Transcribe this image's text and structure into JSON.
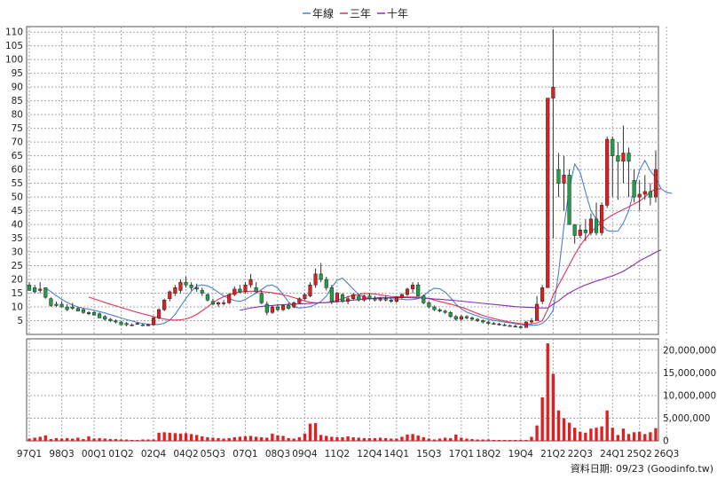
{
  "chart_data": {
    "type": "candlestick",
    "price_axis": {
      "range": [
        0,
        112
      ],
      "ticks": [
        5,
        10,
        15,
        20,
        25,
        30,
        35,
        40,
        45,
        50,
        55,
        60,
        65,
        70,
        75,
        80,
        85,
        90,
        95,
        100,
        105,
        110
      ],
      "tick_labels": [
        "5",
        "10",
        "15",
        "20",
        "25",
        "30",
        "35",
        "40",
        "45",
        "50",
        "55",
        "60",
        "65",
        "70",
        "75",
        "80",
        "85",
        "90",
        "95",
        "100",
        "105",
        "110"
      ]
    },
    "volume_axis": {
      "range": [
        0,
        22500000
      ],
      "ticks": [
        5000000,
        10000000,
        15000000,
        20000000
      ],
      "tick_labels": [
        "5,000,000",
        "10,000,000",
        "15,000,000",
        "20,000,000"
      ]
    },
    "x_axis": {
      "first_quarter": "97Q1",
      "last_quarter": "26Q3",
      "tick_labels": [
        "97Q1",
        "98Q3",
        "00Q1",
        "01Q2",
        "02Q4",
        "04Q2",
        "05Q3",
        "07Q1",
        "08Q3",
        "09Q4",
        "11Q2",
        "12Q4",
        "14Q1",
        "15Q3",
        "17Q1",
        "18Q2",
        "19Q4",
        "21Q2",
        "22Q3",
        "24Q1",
        "25Q2",
        "26Q3"
      ],
      "tick_positions": [
        0,
        6,
        12,
        17,
        23,
        29,
        34,
        40,
        46,
        51,
        57,
        63,
        68,
        74,
        80,
        85,
        91,
        97,
        102,
        108,
        113,
        118
      ]
    },
    "legend": {
      "placement": "top-center",
      "entries": [
        {
          "name": "年線",
          "color": "#4a7fd4"
        },
        {
          "name": "三年",
          "color": "#e0325a"
        },
        {
          "name": "十年",
          "color": "#8a2ab8"
        }
      ]
    },
    "grid": true,
    "footer_text": "資料日期: 09/23  (Goodinfo.tw)",
    "colors": {
      "up": "#e02020",
      "down": "#1fa048",
      "wick": "#333333",
      "volume": "#e02020",
      "grid": "#a8a8a8"
    },
    "candles": [
      [
        18,
        19,
        16,
        16
      ],
      [
        17,
        18,
        15,
        15.5
      ],
      [
        16,
        19,
        15,
        16.5
      ],
      [
        17,
        17,
        13,
        13.5
      ],
      [
        13,
        13.5,
        10,
        10.5
      ],
      [
        11,
        12,
        10,
        10.5
      ],
      [
        11,
        12,
        10,
        10
      ],
      [
        10,
        11,
        8.5,
        9
      ],
      [
        10,
        11.5,
        9,
        9.5
      ],
      [
        9.5,
        10,
        8.5,
        8.5
      ],
      [
        9,
        9.5,
        7.5,
        8
      ],
      [
        8,
        8.5,
        7,
        7.5
      ],
      [
        8,
        8.5,
        7,
        7
      ],
      [
        7.5,
        8,
        6,
        6
      ],
      [
        6.5,
        7,
        5,
        5.5
      ],
      [
        5.5,
        6,
        4.5,
        5
      ],
      [
        5,
        5.5,
        4,
        4.5
      ],
      [
        4.5,
        5,
        3.5,
        3.5
      ],
      [
        4,
        4.5,
        3,
        3.5
      ],
      [
        3.5,
        4,
        3,
        3.5
      ],
      [
        4,
        4.5,
        3.5,
        4
      ],
      [
        3.5,
        4,
        3,
        3.2
      ],
      [
        3.5,
        4,
        3,
        3.5
      ],
      [
        3.5,
        6.5,
        3.2,
        6
      ],
      [
        6,
        9.5,
        5.5,
        9
      ],
      [
        9,
        13,
        8.5,
        12.5
      ],
      [
        13,
        16,
        12,
        15.5
      ],
      [
        15,
        18,
        14,
        17
      ],
      [
        16,
        20,
        15,
        19
      ],
      [
        19,
        21,
        17,
        18
      ],
      [
        18,
        19,
        16,
        17
      ],
      [
        17,
        18.5,
        15.5,
        16.5
      ],
      [
        16,
        17,
        14,
        15
      ],
      [
        14.5,
        15,
        12,
        12.5
      ],
      [
        12,
        13,
        10.5,
        11
      ],
      [
        11,
        12,
        10,
        11.5
      ],
      [
        11.5,
        12.5,
        10.5,
        11.5
      ],
      [
        11.5,
        15,
        11,
        14.5
      ],
      [
        14.5,
        17.5,
        14,
        16.5
      ],
      [
        16.5,
        18,
        15,
        15.5
      ],
      [
        15.5,
        19,
        15,
        18
      ],
      [
        18,
        22,
        17,
        20
      ],
      [
        17,
        19,
        15,
        15.5
      ],
      [
        15,
        16,
        11,
        11.5
      ],
      [
        11,
        12,
        7,
        8
      ],
      [
        8,
        10.5,
        7.5,
        10
      ],
      [
        10,
        11,
        8.5,
        9
      ],
      [
        9,
        11,
        8.5,
        10.5
      ],
      [
        10.5,
        11.5,
        9,
        9.5
      ],
      [
        10,
        12,
        9.5,
        11.5
      ],
      [
        11.5,
        13.5,
        11,
        13
      ],
      [
        13,
        15,
        12.5,
        14.5
      ],
      [
        14,
        19,
        13.5,
        18
      ],
      [
        18,
        24,
        17,
        22
      ],
      [
        22,
        26,
        19,
        20
      ],
      [
        20,
        21,
        16,
        17
      ],
      [
        17,
        18,
        11,
        12
      ],
      [
        12,
        15.5,
        11.5,
        15
      ],
      [
        14.5,
        15,
        11.5,
        12
      ],
      [
        12,
        14,
        11,
        13
      ],
      [
        13,
        15,
        12.5,
        14.5
      ],
      [
        14,
        14.5,
        12,
        12.5
      ],
      [
        12.5,
        14.5,
        12,
        14
      ],
      [
        14,
        15,
        12.5,
        13
      ],
      [
        13,
        14,
        12,
        12.5
      ],
      [
        12.5,
        13.5,
        12,
        13
      ],
      [
        13,
        14,
        12,
        12.5
      ],
      [
        12.5,
        13,
        11.5,
        12
      ],
      [
        12,
        14,
        11.5,
        13.5
      ],
      [
        13.5,
        15,
        13,
        14.5
      ],
      [
        14.5,
        17,
        14,
        16.5
      ],
      [
        16.5,
        19,
        15,
        18
      ],
      [
        18,
        19,
        14,
        14
      ],
      [
        14,
        14.5,
        11,
        11.5
      ],
      [
        11.5,
        12,
        9.5,
        10
      ],
      [
        10,
        10.5,
        8.5,
        9
      ],
      [
        9,
        9.5,
        8,
        8.5
      ],
      [
        8.5,
        9,
        7.5,
        8
      ],
      [
        8,
        8.5,
        6,
        6.5
      ],
      [
        6.5,
        7,
        5,
        5.5
      ],
      [
        5.5,
        7,
        5,
        6.5
      ],
      [
        6.5,
        7,
        5.5,
        6
      ],
      [
        6,
        6.5,
        5,
        5.5
      ],
      [
        5.5,
        6,
        4.5,
        5
      ],
      [
        5,
        5.5,
        4,
        4.5
      ],
      [
        4.5,
        5,
        3.5,
        4
      ],
      [
        4,
        4.5,
        3.5,
        3.8
      ],
      [
        3.8,
        4.2,
        3.2,
        3.5
      ],
      [
        3.5,
        4,
        3,
        3.2
      ],
      [
        3.2,
        3.6,
        2.8,
        3
      ],
      [
        3,
        3.5,
        2.5,
        2.8
      ],
      [
        2.8,
        3.2,
        2.2,
        2.5
      ],
      [
        2.5,
        5,
        2.5,
        4.5
      ],
      [
        4.5,
        6,
        4,
        5
      ],
      [
        5,
        14,
        5,
        11
      ],
      [
        12,
        18,
        11,
        17
      ],
      [
        17,
        86,
        17,
        86
      ],
      [
        86,
        111,
        35,
        90
      ],
      [
        60,
        66,
        50,
        55
      ],
      [
        55,
        65,
        45,
        58
      ],
      [
        58,
        60,
        40,
        40
      ],
      [
        40,
        40,
        33,
        36
      ],
      [
        36,
        40,
        35,
        38
      ],
      [
        38,
        42,
        34,
        37
      ],
      [
        37,
        44,
        36,
        42
      ],
      [
        42,
        48,
        36,
        37
      ],
      [
        37,
        48,
        36,
        47
      ],
      [
        47,
        72,
        46,
        71
      ],
      [
        71,
        72,
        50,
        65
      ],
      [
        65,
        70,
        49,
        63
      ],
      [
        63,
        76,
        55,
        66
      ],
      [
        66,
        68,
        50,
        63
      ],
      [
        56,
        60,
        48,
        50
      ],
      [
        50,
        56,
        45,
        51
      ],
      [
        51,
        58,
        49,
        52
      ],
      [
        52,
        55,
        47,
        50
      ],
      [
        50,
        67,
        48,
        60
      ]
    ],
    "volumes": [
      500000,
      700000,
      900000,
      1200000,
      400000,
      600000,
      500000,
      600000,
      500000,
      700000,
      400000,
      1000000,
      500000,
      600000,
      500000,
      400000,
      400000,
      300000,
      300000,
      200000,
      200000,
      300000,
      300000,
      300000,
      1800000,
      1900000,
      1800000,
      1700000,
      1600000,
      1700000,
      1500000,
      1300000,
      1000000,
      800000,
      700000,
      600000,
      500000,
      600000,
      800000,
      900000,
      1000000,
      1100000,
      900000,
      800000,
      700000,
      1600000,
      1200000,
      1100000,
      600000,
      500000,
      800000,
      1600000,
      3800000,
      3900000,
      1300000,
      1100000,
      900000,
      800000,
      800000,
      1000000,
      800000,
      700000,
      600000,
      600000,
      600000,
      700000,
      600000,
      500000,
      500000,
      900000,
      1400000,
      1500000,
      1200000,
      800000,
      500000,
      300000,
      500000,
      700000,
      600000,
      1400000,
      700000,
      500000,
      400000,
      300000,
      300000,
      300000,
      200000,
      200000,
      200000,
      200000,
      200000,
      200000,
      200000,
      900000,
      3400000,
      9600000,
      21500000,
      14800000,
      6700000,
      5000000,
      4000000,
      2900000,
      2000000,
      1800000,
      2700000,
      2900000,
      3200000,
      6700000,
      2900000,
      1300000,
      2700000,
      1500000,
      1900000,
      2000000,
      1500000,
      1900000,
      2800000
    ],
    "series": [
      {
        "name": "年線",
        "color": "#4a7fd4",
        "start_index": 3,
        "values": [
          16.8,
          15.6,
          14.1,
          12.8,
          11.6,
          10.7,
          10.0,
          9.5,
          9.2,
          8.8,
          8.3,
          7.8,
          7.2,
          6.6,
          6.0,
          5.4,
          4.9,
          4.4,
          4.0,
          3.7,
          3.6,
          3.6,
          4.1,
          5.2,
          7.3,
          10.2,
          13.1,
          15.7,
          17.6,
          18.0,
          17.7,
          16.7,
          15.3,
          14.0,
          13.1,
          12.3,
          12.0,
          12.7,
          13.9,
          15.0,
          16.3,
          17.7,
          18.0,
          16.9,
          14.4,
          11.8,
          10.0,
          9.6,
          9.8,
          10.1,
          10.9,
          12.0,
          13.9,
          17.1,
          19.7,
          20.5,
          18.5,
          16.5,
          14.4,
          13.6,
          12.9,
          13.3,
          13.5,
          13.4,
          13.0,
          12.9,
          12.8,
          12.6,
          12.7,
          13.0,
          14.0,
          15.7,
          16.8,
          16.6,
          15.4,
          13.4,
          11.0,
          9.3,
          8.1,
          7.4,
          6.7,
          6.0,
          5.5,
          5.1,
          4.8,
          4.5,
          4.2,
          3.9,
          3.6,
          3.3,
          3.3,
          3.4,
          4.0,
          5.8,
          8.7,
          22.3,
          39.3,
          53.0,
          62.0,
          59.0,
          51.8,
          45.0,
          42.0,
          39.8,
          37.8,
          37.5,
          37.6,
          40.5,
          45.0,
          52.7,
          59.8,
          63.3,
          59.5,
          57.0,
          53.0,
          51.7,
          51.3
        ]
      },
      {
        "name": "三年",
        "color": "#e0325a",
        "start_index": 11,
        "values": [
          13.6,
          12.9,
          12.3,
          11.6,
          11.0,
          10.4,
          9.8,
          9.2,
          8.6,
          8.0,
          7.5,
          7.0,
          6.5,
          6.0,
          5.6,
          5.3,
          5.2,
          5.3,
          5.6,
          6.3,
          7.3,
          8.6,
          10.0,
          11.5,
          12.8,
          13.7,
          14.5,
          15.1,
          15.4,
          15.6,
          15.7,
          15.7,
          15.6,
          15.4,
          15.2,
          14.8,
          14.4,
          14.0,
          13.4,
          12.8,
          12.2,
          11.7,
          11.5,
          11.5,
          11.6,
          11.9,
          12.5,
          13.0,
          13.7,
          14.2,
          14.6,
          14.9,
          14.8,
          14.7,
          14.4,
          14.1,
          13.8,
          13.7,
          13.7,
          13.6,
          13.6,
          13.6,
          13.4,
          13.0,
          12.5,
          12.0,
          11.5,
          11.0,
          10.5,
          9.9,
          9.2,
          8.4,
          7.6,
          6.9,
          6.3,
          5.8,
          5.3,
          4.9,
          4.5,
          4.2,
          3.9,
          3.7,
          3.8,
          4.2,
          5.0,
          9.1,
          14.3,
          18.0,
          21.6,
          25.3,
          29.0,
          32.3,
          34.9,
          37.2,
          39.1,
          40.9,
          42.2,
          43.5,
          44.5,
          45.5,
          46.4,
          47.5,
          48.5,
          50.0,
          51.8,
          52.9,
          53.0
        ]
      },
      {
        "name": "十年",
        "color": "#8a2ab8",
        "start_index": 39,
        "values": [
          8.8,
          9.2,
          9.6,
          9.9,
          10.2,
          10.4,
          10.5,
          10.7,
          10.8,
          10.9,
          11.0,
          11.1,
          11.2,
          11.3,
          11.4,
          11.5,
          11.6,
          11.7,
          11.9,
          12.1,
          12.3,
          12.5,
          12.7,
          12.9,
          13.0,
          13.1,
          13.2,
          13.3,
          13.4,
          13.4,
          13.4,
          13.4,
          13.3,
          13.3,
          13.2,
          13.1,
          12.9,
          12.8,
          12.6,
          12.5,
          12.3,
          12.1,
          11.9,
          11.7,
          11.5,
          11.3,
          11.1,
          10.9,
          10.7,
          10.5,
          10.3,
          10.1,
          10.0,
          9.9,
          9.8,
          9.7,
          9.6,
          9.6,
          11.0,
          12.2,
          13.8,
          15.1,
          16.2,
          17.1,
          18.0,
          18.7,
          19.4,
          20.0,
          20.7,
          21.3,
          22.1,
          23.0,
          24.2,
          25.4,
          26.8,
          27.8,
          28.8,
          29.9,
          30.8
        ]
      }
    ]
  }
}
